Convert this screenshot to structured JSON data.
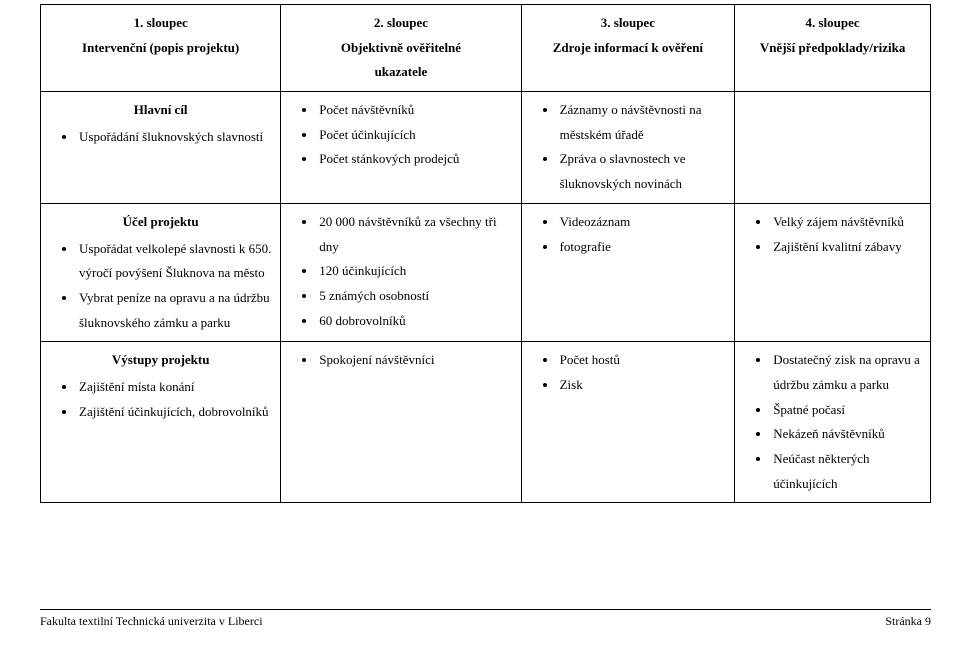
{
  "header": {
    "col1_line1": "1. sloupec",
    "col1_line2": "Intervenční (popis projektu)",
    "col2_line1": "2. sloupec",
    "col2_line2": "Objektivně ověřitelné",
    "col2_line3": "ukazatele",
    "col3_line1": "3. sloupec",
    "col3_line2": "Zdroje informací k ověření",
    "col4_line1": "4. sloupec",
    "col4_line2": "Vnější předpoklady/rizika"
  },
  "row1": {
    "col1_title": "Hlavní cíl",
    "col1_item1": "Uspořádání šluknovských slavností",
    "col2_item1": "Počet návštěvníků",
    "col2_item2": "Počet účinkujících",
    "col2_item3": "Počet stánkových prodejců",
    "col3_item1": "Záznamy o návštěvnosti na městském úřadě",
    "col3_item2": "Zpráva o slavnostech ve šluknovských novinách"
  },
  "row2": {
    "col1_title": "Účel projektu",
    "col1_item1": "Uspořádat velkolepé slavnosti k 650. výročí povýšení Šluknova na město",
    "col1_item2": "Vybrat peníze na opravu a na údržbu šluknovského zámku a parku",
    "col2_item1": "20 000 návštěvníků za všechny tři dny",
    "col2_item2": "120 účinkujících",
    "col2_item3": "5 známých osobností",
    "col2_item4": "60 dobrovolníků",
    "col3_item1": "Videozáznam",
    "col3_item2": "fotografie",
    "col4_item1": "Velký zájem návštěvníků",
    "col4_item2": "Zajištění kvalitní zábavy"
  },
  "row3": {
    "col1_title": "Výstupy projektu",
    "col1_item1": "Zajištění místa konání",
    "col1_item2": "Zajištění účinkujících, dobrovolníků",
    "col2_item1": "Spokojení návštěvníci",
    "col3_item1": "Počet hostů",
    "col3_item2": "Zisk",
    "col4_item1": "Dostatečný zisk na opravu a údržbu zámku a parku",
    "col4_item2": "Špatné počasí",
    "col4_item3": "Nekázeň návštěvníků",
    "col4_item4": "Neúčast některých účinkujících"
  },
  "footer": {
    "left": "Fakulta textilní Technická univerzita v Liberci",
    "right": "Stránka 9"
  }
}
